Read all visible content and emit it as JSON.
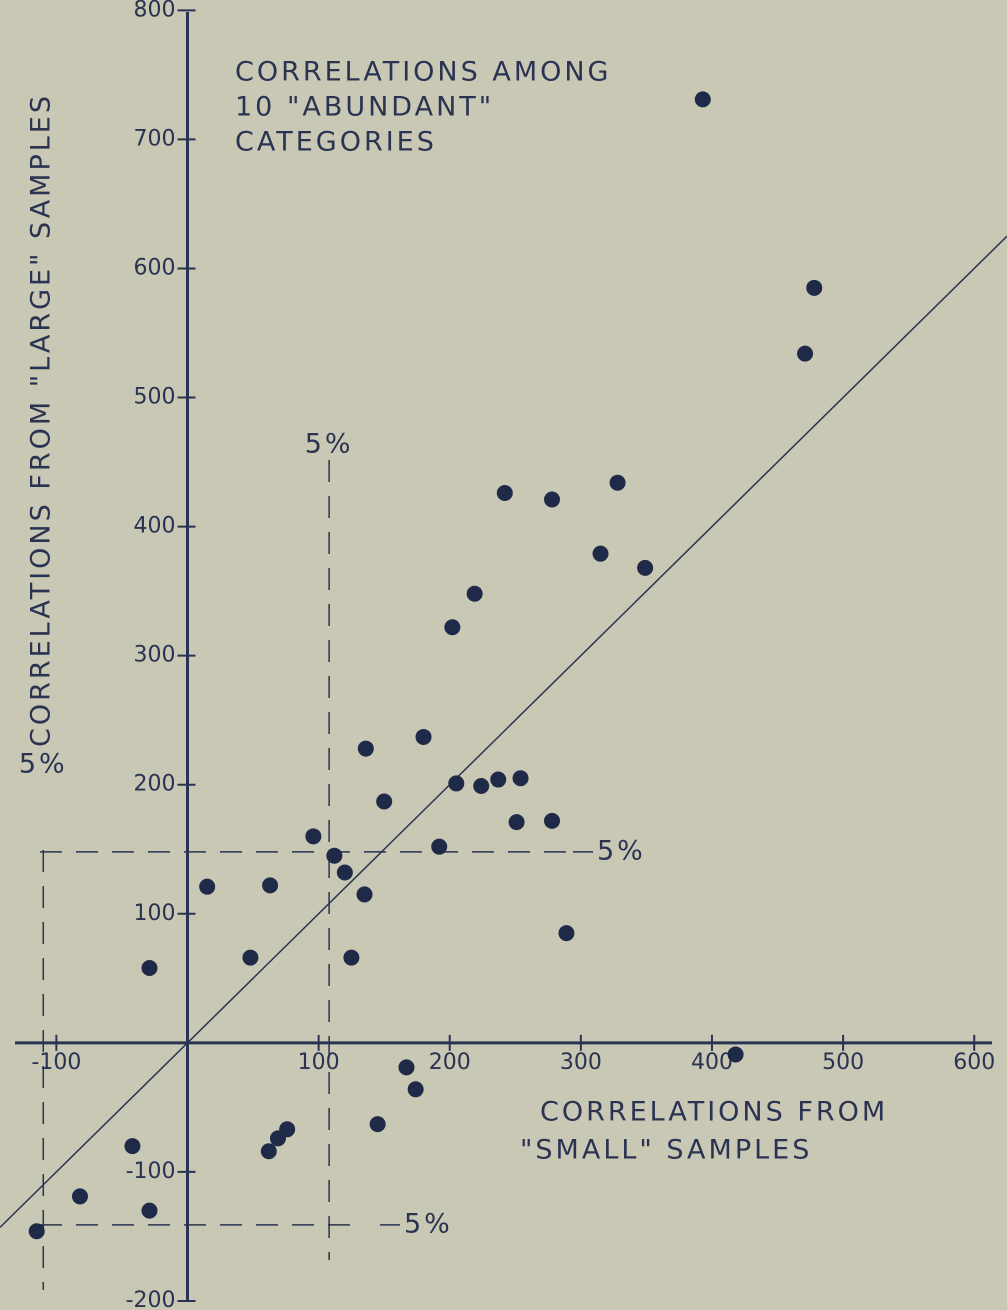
{
  "chart_data": {
    "type": "scatter",
    "title": [
      "CORRELATIONS AMONG",
      "10 \"ABUNDANT\"",
      "CATEGORIES"
    ],
    "xlabel": [
      "CORRELATIONS FROM",
      "\"SMALL\" SAMPLES"
    ],
    "ylabel": "CORRELATIONS FROM \"LARGE\" SAMPLES",
    "color": "#1f2a48",
    "diagonal": true,
    "xlim": [
      -143,
      625
    ],
    "ylim": [
      -207,
      808
    ],
    "xticks": [
      -100,
      100,
      200,
      300,
      400,
      500,
      600
    ],
    "yticks": [
      -200,
      -100,
      100,
      200,
      300,
      400,
      500,
      600,
      700,
      800
    ],
    "ref_lines": [
      {
        "axis": "x",
        "value": 108,
        "label": "5%"
      },
      {
        "axis": "y",
        "value": 148,
        "label": "5%"
      },
      {
        "axis": "y",
        "value": -141,
        "label": "5%"
      },
      {
        "axis": "x",
        "value": -110,
        "label": "5%"
      }
    ],
    "x": [
      393,
      478,
      471,
      242,
      278,
      328,
      315,
      349,
      219,
      202,
      136,
      180,
      150,
      205,
      224,
      237,
      254,
      251,
      278,
      96,
      192,
      112,
      120,
      15,
      63,
      135,
      289,
      48,
      125,
      -29,
      418,
      167,
      174,
      145,
      76,
      69,
      62,
      -42,
      -82,
      -29,
      -115
    ],
    "values": [
      731,
      585,
      534,
      426,
      421,
      434,
      379,
      368,
      348,
      322,
      228,
      237,
      187,
      201,
      199,
      204,
      205,
      171,
      172,
      160,
      152,
      145,
      132,
      121,
      122,
      115,
      85,
      66,
      66,
      58,
      -9,
      -19,
      -36,
      -63,
      -67,
      -74,
      -84,
      -80,
      -119,
      -130,
      -146
    ]
  }
}
